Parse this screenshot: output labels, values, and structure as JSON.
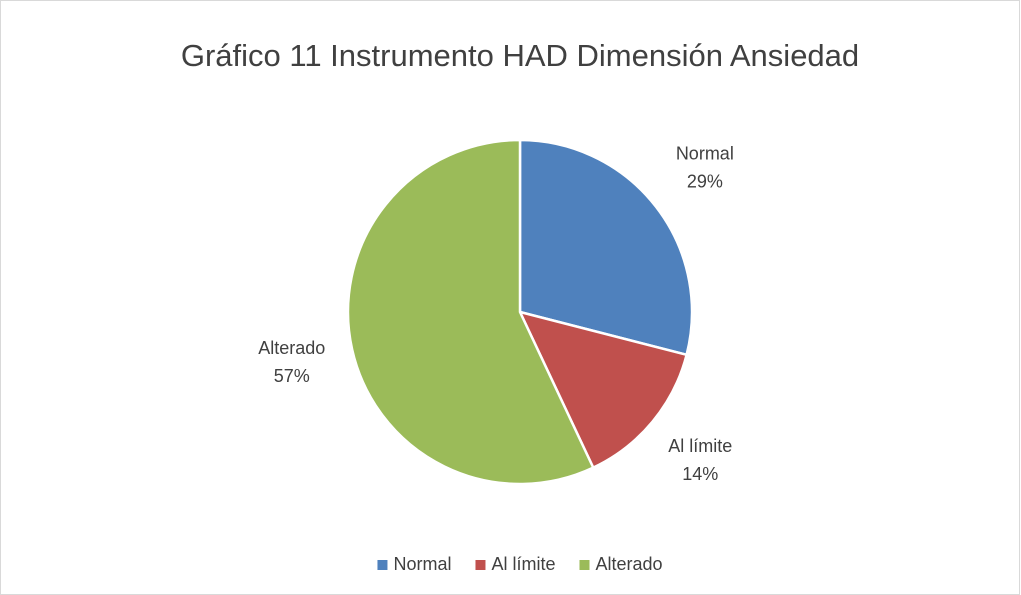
{
  "chart_data": {
    "type": "pie",
    "title": "Gráfico 11 Instrumento HAD Dimensión Ansiedad",
    "categories": [
      "Normal",
      "Al límite",
      "Alterado"
    ],
    "values": [
      29,
      14,
      57
    ],
    "value_labels": [
      "29%",
      "14%",
      "57%"
    ],
    "colors": [
      "#4f81bd",
      "#c0504d",
      "#9bbb59"
    ],
    "legend": "bottom"
  }
}
